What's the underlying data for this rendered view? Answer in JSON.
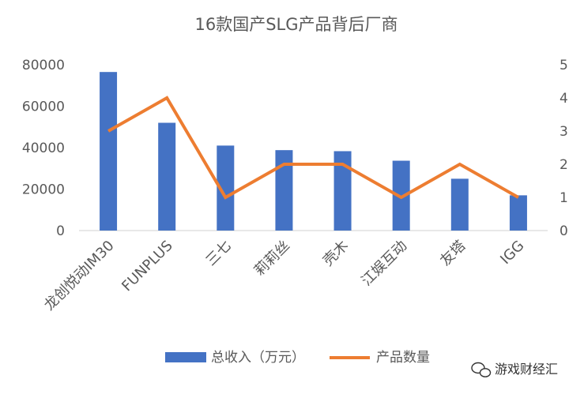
{
  "chart_data": {
    "type": "bar",
    "title": "16款国产SLG产品背后厂商",
    "categories": [
      "龙创悦动IM30",
      "FUNPLUS",
      "三七",
      "莉莉丝",
      "壳木",
      "江娱互动",
      "友塔",
      "IGG"
    ],
    "series": [
      {
        "name": "总收入（万元）",
        "type": "bar",
        "axis": "left",
        "color": "#4472C4",
        "values": [
          76500,
          52000,
          41000,
          38800,
          38300,
          33700,
          25000,
          17000
        ]
      },
      {
        "name": "产品数量",
        "type": "line",
        "axis": "right",
        "color": "#ED7D31",
        "values": [
          3,
          4,
          1,
          2,
          2,
          1,
          2,
          1
        ]
      }
    ],
    "y_left": {
      "ylim": [
        0,
        80000
      ],
      "ticks": [
        "0",
        "20000",
        "40000",
        "60000",
        "80000"
      ]
    },
    "y_right": {
      "ylim": [
        0,
        5
      ],
      "ticks": [
        "0",
        "1",
        "2",
        "3",
        "4",
        "5"
      ]
    },
    "grid": false,
    "legend": "bottom"
  },
  "watermark": {
    "text": "游戏财经汇",
    "icon": "wechat-icon"
  }
}
